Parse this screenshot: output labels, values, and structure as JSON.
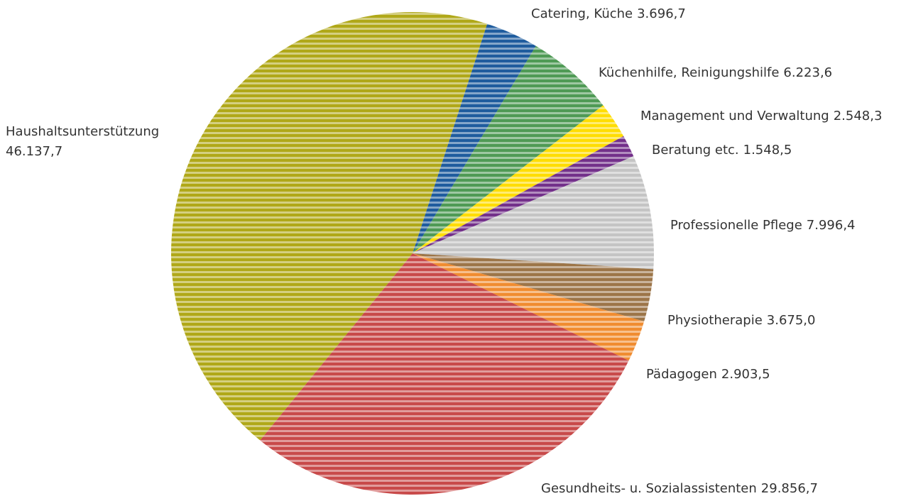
{
  "chart_data": {
    "type": "pie",
    "categories": [
      "Catering, Küche",
      "Küchenhilfe, Reinigungshilfe",
      "Management und Verwaltung",
      "Beratung etc.",
      "Professionelle Pflege",
      "Physiotherapie",
      "Pädagogen",
      "Gesundheits- u. Sozialassistenten",
      "Haushaltsunterstützung"
    ],
    "values": [
      3696.7,
      6223.6,
      2548.3,
      1548.5,
      7996.4,
      3675.0,
      2903.5,
      29856.7,
      46137.7
    ],
    "value_labels": [
      "3.696,7",
      "6.223,6",
      "2.548,3",
      "1.548,5",
      "7.996,4",
      "3.675,0",
      "2.903,5",
      "29.856,7",
      "46.137,7"
    ],
    "colors": [
      "#1f5c9e",
      "#4f9a55",
      "#ffdd00",
      "#73308a",
      "#c4c4c4",
      "#9c7548",
      "#f08c30",
      "#c84a4a",
      "#b0a818"
    ]
  }
}
